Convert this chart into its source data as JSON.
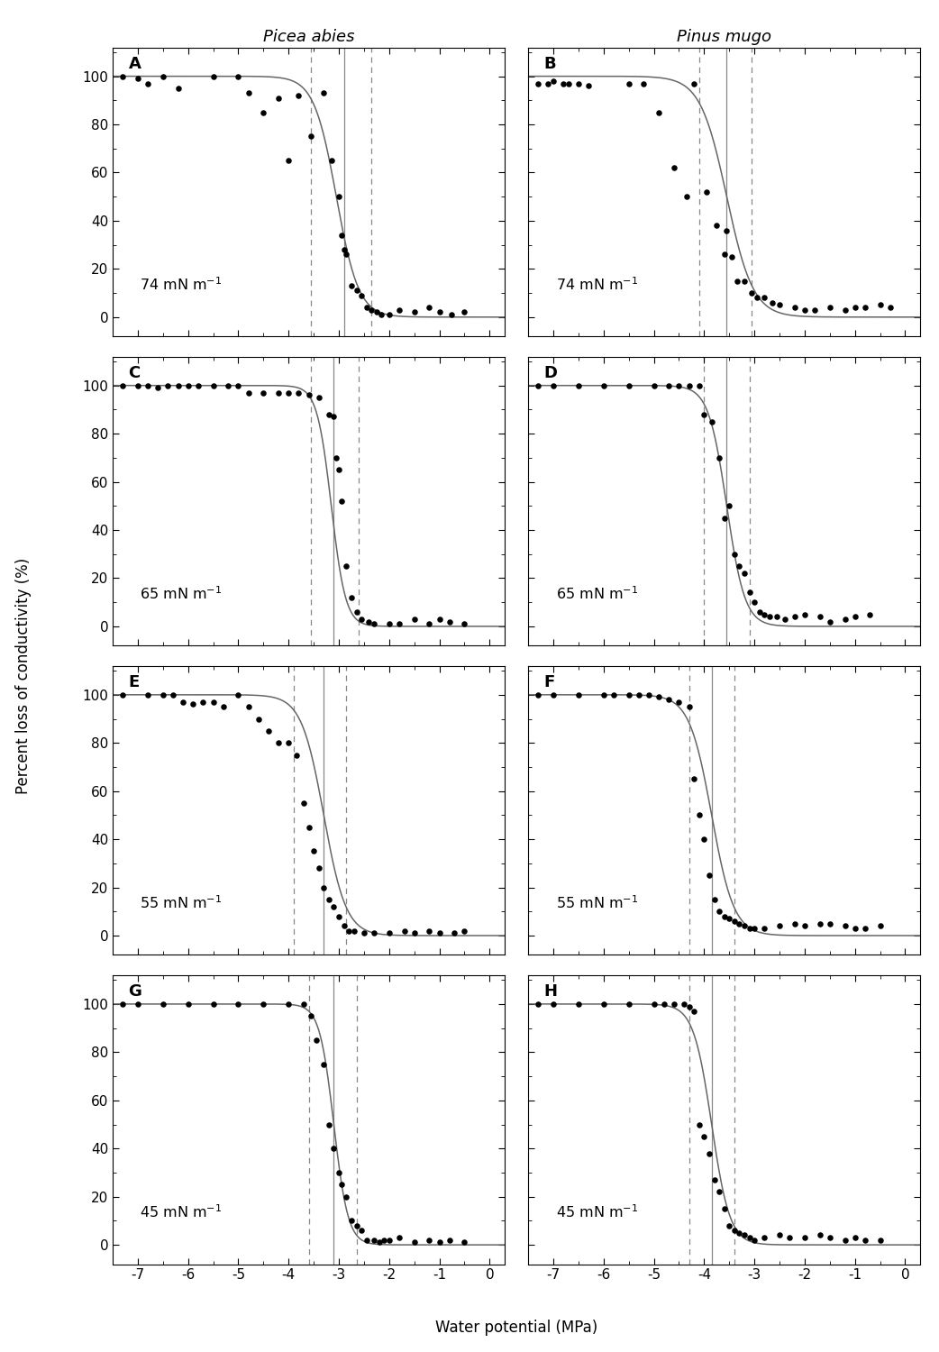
{
  "col_titles": [
    "Picea abies",
    "Pinus mugo"
  ],
  "panel_labels": [
    [
      "A",
      "B"
    ],
    [
      "C",
      "D"
    ],
    [
      "E",
      "F"
    ],
    [
      "G",
      "H"
    ]
  ],
  "surface_tensions": [
    "74 mN m$^{-1}$",
    "65 mN m$^{-1}$",
    "55 mN m$^{-1}$",
    "45 mN m$^{-1}$"
  ],
  "xlabel": "Water potential (MPa)",
  "ylabel": "Percent loss of conductivity (%)",
  "xlim": [
    -7.5,
    0.3
  ],
  "ylim": [
    -8,
    112
  ],
  "xticks": [
    -7,
    -6,
    -5,
    -4,
    -3,
    -2,
    -1,
    0
  ],
  "yticks": [
    0,
    20,
    40,
    60,
    80,
    100
  ],
  "panels": {
    "A": {
      "sigmoid_p50": -3.05,
      "sigmoid_slope": 4.5,
      "vline_solid": -2.9,
      "vlines_dashed": [
        -3.55,
        -2.35
      ],
      "points_x": [
        -7.3,
        -7.0,
        -6.8,
        -6.5,
        -6.2,
        -5.5,
        -5.0,
        -4.8,
        -4.5,
        -4.2,
        -4.0,
        -3.8,
        -3.55,
        -3.3,
        -3.15,
        -3.0,
        -2.95,
        -2.9,
        -2.85,
        -2.75,
        -2.65,
        -2.55,
        -2.45,
        -2.35,
        -2.25,
        -2.15,
        -2.0,
        -1.8,
        -1.5,
        -1.2,
        -1.0,
        -0.75,
        -0.5
      ],
      "points_y": [
        100,
        99,
        97,
        100,
        95,
        100,
        100,
        93,
        85,
        91,
        65,
        92,
        75,
        93,
        65,
        50,
        34,
        28,
        26,
        13,
        11,
        9,
        4,
        3,
        2,
        1,
        1,
        3,
        2,
        4,
        2,
        1,
        2
      ]
    },
    "B": {
      "sigmoid_p50": -3.55,
      "sigmoid_slope": 3.8,
      "vline_solid": -3.55,
      "vlines_dashed": [
        -4.1,
        -3.05
      ],
      "points_x": [
        -7.3,
        -7.1,
        -7.0,
        -6.8,
        -6.7,
        -6.5,
        -6.3,
        -5.5,
        -5.2,
        -4.9,
        -4.6,
        -4.35,
        -4.2,
        -3.95,
        -3.75,
        -3.6,
        -3.55,
        -3.45,
        -3.35,
        -3.2,
        -3.05,
        -2.95,
        -2.8,
        -2.65,
        -2.5,
        -2.2,
        -2.0,
        -1.8,
        -1.5,
        -1.2,
        -1.0,
        -0.8,
        -0.5,
        -0.3
      ],
      "points_y": [
        97,
        97,
        98,
        97,
        97,
        97,
        96,
        97,
        97,
        85,
        62,
        50,
        97,
        52,
        38,
        26,
        36,
        25,
        15,
        15,
        10,
        8,
        8,
        6,
        5,
        4,
        3,
        3,
        4,
        3,
        4,
        4,
        5,
        4
      ]
    },
    "C": {
      "sigmoid_p50": -3.15,
      "sigmoid_slope": 7.0,
      "vline_solid": -3.1,
      "vlines_dashed": [
        -3.55,
        -2.6
      ],
      "points_x": [
        -7.3,
        -7.0,
        -6.8,
        -6.6,
        -6.4,
        -6.2,
        -6.0,
        -5.8,
        -5.5,
        -5.2,
        -5.0,
        -4.8,
        -4.5,
        -4.2,
        -4.0,
        -3.8,
        -3.6,
        -3.4,
        -3.2,
        -3.1,
        -3.05,
        -3.0,
        -2.95,
        -2.85,
        -2.75,
        -2.65,
        -2.55,
        -2.4,
        -2.3,
        -2.0,
        -1.8,
        -1.5,
        -1.2,
        -1.0,
        -0.8,
        -0.5
      ],
      "points_y": [
        100,
        100,
        100,
        99,
        100,
        100,
        100,
        100,
        100,
        100,
        100,
        97,
        97,
        97,
        97,
        97,
        96,
        95,
        88,
        87,
        70,
        65,
        52,
        25,
        12,
        6,
        3,
        2,
        1,
        1,
        1,
        3,
        1,
        3,
        2,
        1
      ]
    },
    "D": {
      "sigmoid_p50": -3.55,
      "sigmoid_slope": 5.5,
      "vline_solid": -3.55,
      "vlines_dashed": [
        -4.0,
        -3.1
      ],
      "points_x": [
        -7.3,
        -7.0,
        -6.5,
        -6.0,
        -5.5,
        -5.0,
        -4.7,
        -4.5,
        -4.3,
        -4.1,
        -4.0,
        -3.85,
        -3.7,
        -3.6,
        -3.5,
        -3.4,
        -3.3,
        -3.2,
        -3.1,
        -3.0,
        -2.9,
        -2.8,
        -2.7,
        -2.55,
        -2.4,
        -2.2,
        -2.0,
        -1.7,
        -1.5,
        -1.2,
        -1.0,
        -0.7
      ],
      "points_y": [
        100,
        100,
        100,
        100,
        100,
        100,
        100,
        100,
        100,
        100,
        88,
        85,
        70,
        45,
        50,
        30,
        25,
        22,
        14,
        10,
        6,
        5,
        4,
        4,
        3,
        4,
        5,
        4,
        2,
        3,
        4,
        5
      ]
    },
    "E": {
      "sigmoid_p50": -3.3,
      "sigmoid_slope": 4.5,
      "vline_solid": -3.3,
      "vlines_dashed": [
        -3.9,
        -2.85
      ],
      "points_x": [
        -7.3,
        -6.8,
        -6.5,
        -6.3,
        -6.1,
        -5.9,
        -5.7,
        -5.5,
        -5.3,
        -5.0,
        -4.8,
        -4.6,
        -4.4,
        -4.2,
        -4.0,
        -3.85,
        -3.7,
        -3.6,
        -3.5,
        -3.4,
        -3.3,
        -3.2,
        -3.1,
        -3.0,
        -2.9,
        -2.8,
        -2.7,
        -2.5,
        -2.3,
        -2.0,
        -1.7,
        -1.5,
        -1.2,
        -1.0,
        -0.7,
        -0.5
      ],
      "points_y": [
        100,
        100,
        100,
        100,
        97,
        96,
        97,
        97,
        95,
        100,
        95,
        90,
        85,
        80,
        80,
        75,
        55,
        45,
        35,
        28,
        20,
        15,
        12,
        8,
        4,
        2,
        2,
        1,
        1,
        1,
        2,
        1,
        2,
        1,
        1,
        2
      ]
    },
    "F": {
      "sigmoid_p50": -3.85,
      "sigmoid_slope": 4.5,
      "vline_solid": -3.85,
      "vlines_dashed": [
        -4.3,
        -3.4
      ],
      "points_x": [
        -7.3,
        -7.0,
        -6.5,
        -6.0,
        -5.8,
        -5.5,
        -5.3,
        -5.1,
        -4.9,
        -4.7,
        -4.5,
        -4.3,
        -4.2,
        -4.1,
        -4.0,
        -3.9,
        -3.8,
        -3.7,
        -3.6,
        -3.5,
        -3.4,
        -3.3,
        -3.2,
        -3.1,
        -3.0,
        -2.8,
        -2.5,
        -2.2,
        -2.0,
        -1.7,
        -1.5,
        -1.2,
        -1.0,
        -0.8,
        -0.5
      ],
      "points_y": [
        100,
        100,
        100,
        100,
        100,
        100,
        100,
        100,
        99,
        98,
        97,
        95,
        65,
        50,
        40,
        25,
        15,
        10,
        8,
        7,
        6,
        5,
        4,
        3,
        3,
        3,
        4,
        5,
        4,
        5,
        5,
        4,
        3,
        3,
        4
      ]
    },
    "G": {
      "sigmoid_p50": -3.1,
      "sigmoid_slope": 7.0,
      "vline_solid": -3.1,
      "vlines_dashed": [
        -3.6,
        -2.65
      ],
      "points_x": [
        -7.3,
        -7.0,
        -6.5,
        -6.0,
        -5.5,
        -5.0,
        -4.5,
        -4.0,
        -3.7,
        -3.55,
        -3.45,
        -3.3,
        -3.2,
        -3.1,
        -3.0,
        -2.95,
        -2.85,
        -2.75,
        -2.65,
        -2.55,
        -2.45,
        -2.3,
        -2.2,
        -2.1,
        -2.0,
        -1.8,
        -1.5,
        -1.2,
        -1.0,
        -0.8,
        -0.5
      ],
      "points_y": [
        100,
        100,
        100,
        100,
        100,
        100,
        100,
        100,
        100,
        95,
        85,
        75,
        50,
        40,
        30,
        25,
        20,
        10,
        8,
        6,
        2,
        2,
        1,
        2,
        2,
        3,
        1,
        2,
        1,
        2,
        1
      ]
    },
    "H": {
      "sigmoid_p50": -3.85,
      "sigmoid_slope": 5.5,
      "vline_solid": -3.85,
      "vlines_dashed": [
        -4.3,
        -3.4
      ],
      "points_x": [
        -7.3,
        -7.0,
        -6.5,
        -6.0,
        -5.5,
        -5.0,
        -4.8,
        -4.6,
        -4.4,
        -4.3,
        -4.2,
        -4.1,
        -4.0,
        -3.9,
        -3.8,
        -3.7,
        -3.6,
        -3.5,
        -3.4,
        -3.3,
        -3.2,
        -3.1,
        -3.0,
        -2.8,
        -2.5,
        -2.3,
        -2.0,
        -1.7,
        -1.5,
        -1.2,
        -1.0,
        -0.8,
        -0.5
      ],
      "points_y": [
        100,
        100,
        100,
        100,
        100,
        100,
        100,
        100,
        100,
        99,
        97,
        50,
        45,
        38,
        27,
        22,
        15,
        8,
        6,
        5,
        4,
        3,
        2,
        3,
        4,
        3,
        3,
        4,
        3,
        2,
        3,
        2,
        2
      ]
    }
  }
}
